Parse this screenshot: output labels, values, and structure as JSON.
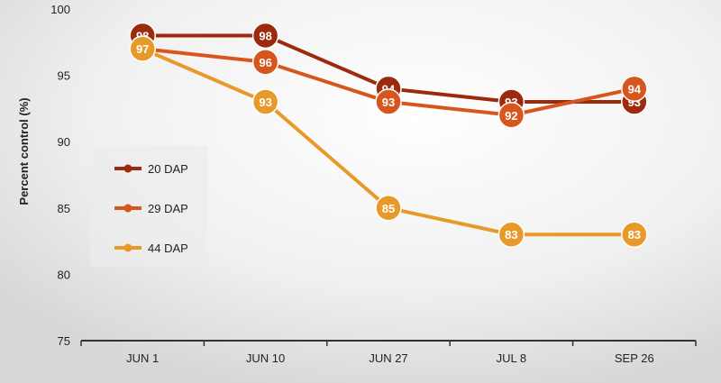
{
  "chart_data": {
    "type": "line",
    "categories": [
      "JUN 1",
      "JUN 10",
      "JUN 27",
      "JUL 8",
      "SEP 26"
    ],
    "ylabel": "Percent control (%)",
    "ylim": [
      75,
      100
    ],
    "yticks": [
      75,
      80,
      85,
      90,
      95,
      100
    ],
    "grid": false,
    "legend_position": "left",
    "series": [
      {
        "name": "20 DAP",
        "color": "#9c2a0c",
        "values": [
          98,
          98,
          94,
          93,
          93
        ]
      },
      {
        "name": "29 DAP",
        "color": "#d6561e",
        "values": [
          97,
          96,
          93,
          92,
          94
        ]
      },
      {
        "name": "44 DAP",
        "color": "#e79a2a",
        "values": [
          97,
          93,
          85,
          83,
          83
        ]
      }
    ]
  }
}
